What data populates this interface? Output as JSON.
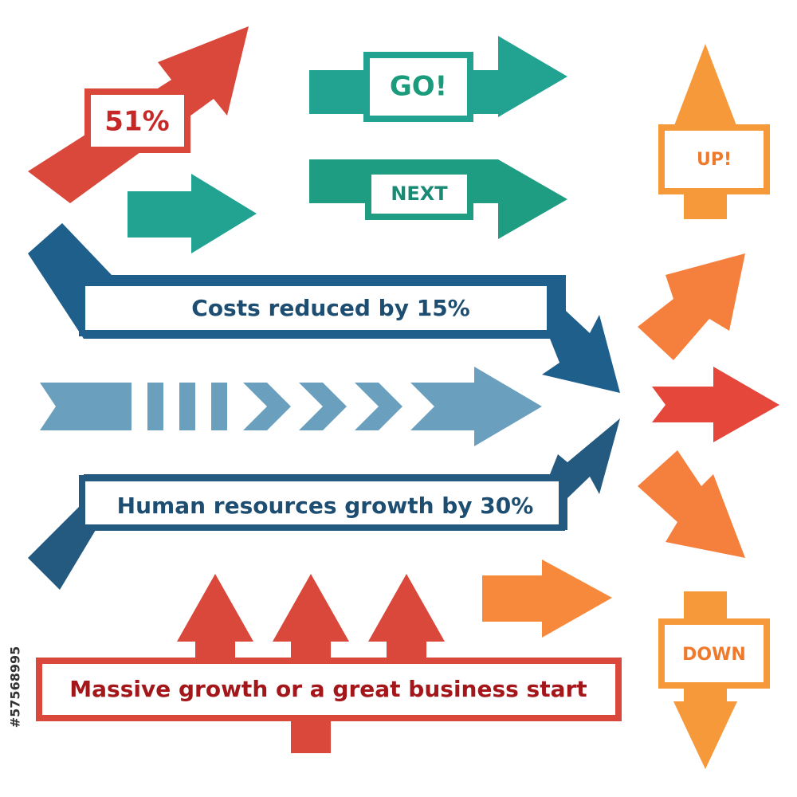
{
  "badges": {
    "percent": "51%",
    "go": "GO!",
    "next": "NEXT",
    "up": "UP!",
    "down": "DOWN"
  },
  "banners": {
    "costs": "Costs reduced by 15%",
    "hr": "Human resources growth by 30%",
    "growth": "Massive growth or a great business start"
  },
  "stock_id": "#57568995"
}
